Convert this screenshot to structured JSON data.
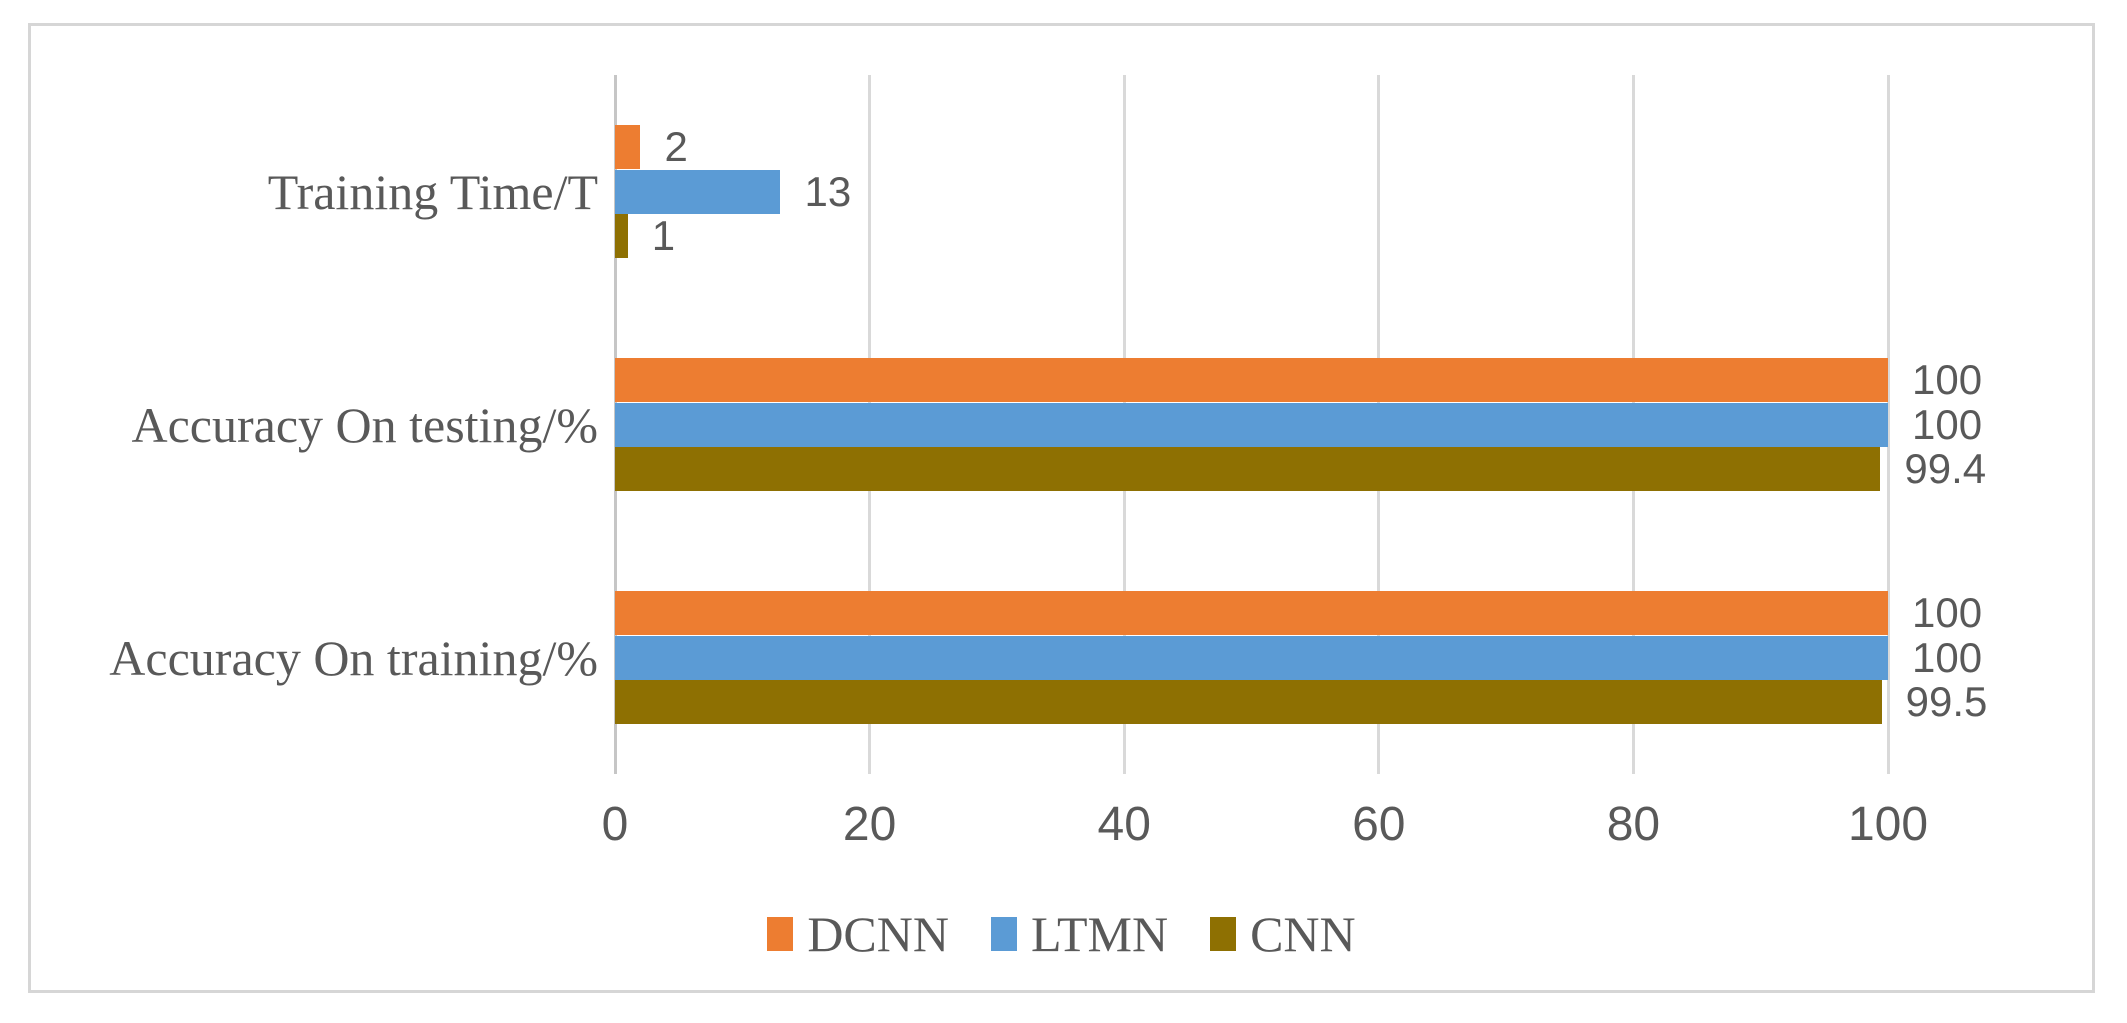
{
  "chart_data": {
    "type": "bar",
    "orientation": "horizontal",
    "title": "",
    "xlabel": "",
    "ylabel": "",
    "categories": [
      "Training Time/T",
      "Accuracy On testing/%",
      "Accuracy On training/%"
    ],
    "series": [
      {
        "name": "DCNN",
        "color": "#ED7D31",
        "values": [
          2,
          100,
          100
        ],
        "labels": [
          "2",
          "100",
          "100"
        ]
      },
      {
        "name": "LTMN",
        "color": "#5B9BD5",
        "values": [
          13,
          100,
          100
        ],
        "labels": [
          "13",
          "100",
          "100"
        ]
      },
      {
        "name": "CNN",
        "color": "#8E7002",
        "values": [
          1,
          99.4,
          99.5
        ],
        "labels": [
          "1",
          "99.4",
          "99.5"
        ]
      }
    ],
    "x_ticks": [
      0,
      20,
      40,
      60,
      80,
      100
    ],
    "x_tick_labels": [
      "0",
      "20",
      "40",
      "60",
      "80",
      "100"
    ],
    "xlim": [
      0,
      100
    ],
    "grid": true,
    "legend_position": "bottom"
  },
  "style": {
    "gridline_color": "#d9d9d9",
    "axis_line_color": "#c6c6c6",
    "text_color": "#595959",
    "border_color": "#d6d6d6",
    "background": "#ffffff"
  }
}
